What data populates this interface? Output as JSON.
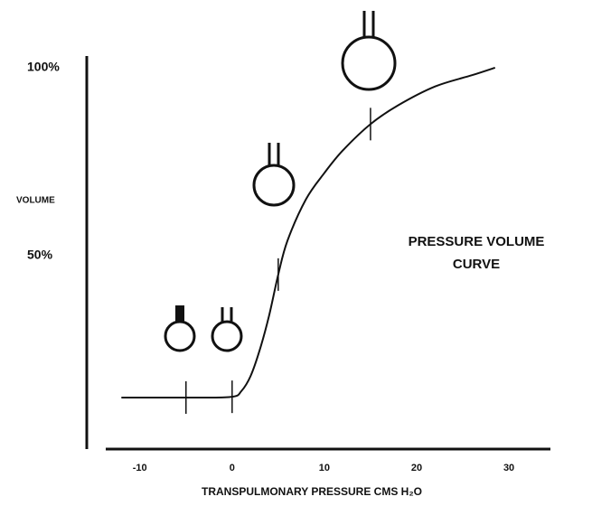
{
  "chart_data": {
    "type": "line",
    "x_label": "TRANSPULMONARY PRESSURE CMS H₂O",
    "y_label": "VOLUME",
    "annotation": [
      "PRESSURE VOLUME",
      "CURVE"
    ],
    "x": [
      -12,
      -8,
      -4,
      0,
      1,
      2,
      3,
      4,
      5,
      6,
      8,
      10,
      12,
      15,
      18,
      22,
      26,
      28.5
    ],
    "values": [
      12.3,
      12.3,
      12.3,
      12.5,
      14,
      18,
      25,
      34,
      45,
      54,
      65,
      72,
      78,
      85,
      90,
      95,
      98,
      100
    ],
    "markers": [
      -5,
      0,
      5,
      15
    ],
    "color": "#111111",
    "xlim": [
      -13.5,
      34.5
    ],
    "xticks": [
      -10,
      0,
      10,
      20,
      30
    ],
    "ylim": [
      -1.4,
      103.1
    ],
    "yticks": [
      {
        "value": 50,
        "label": "50%"
      },
      {
        "value": 100,
        "label": "100%"
      }
    ],
    "grid": false
  }
}
